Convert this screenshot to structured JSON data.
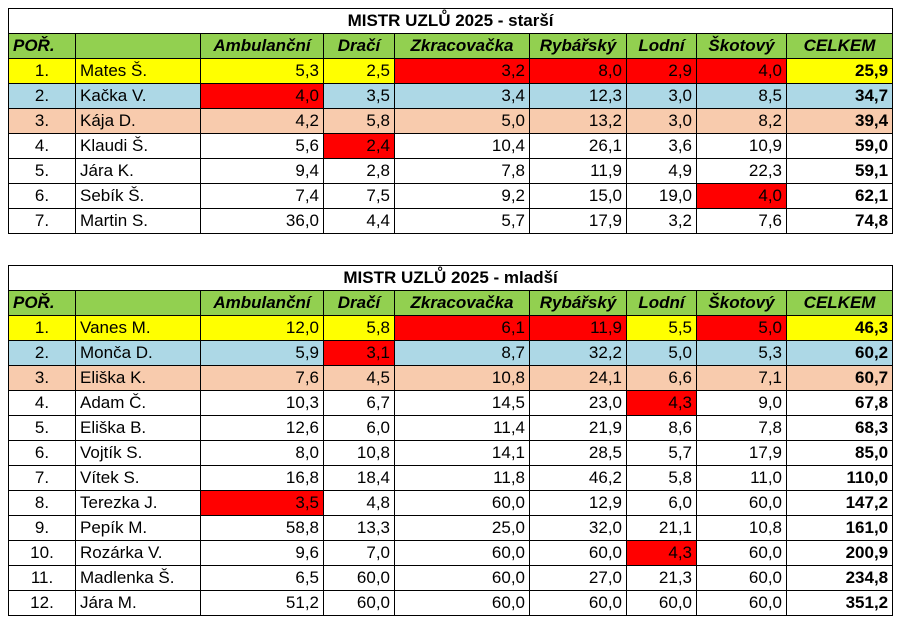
{
  "colors": {
    "header_green": "#92d050",
    "gold": "#ffff00",
    "silver": "#add8e6",
    "bronze": "#f8cbad",
    "best_red": "#ff0000"
  },
  "tables": [
    {
      "title": "MISTR UZLŮ 2025 - starší",
      "headers": [
        "POŘ.",
        "",
        "Ambulanční",
        "Dračí",
        "Zkracovačka",
        "Rybářský",
        "Lodní",
        "Škotový",
        "CELKEM"
      ],
      "rows": [
        {
          "rank": "1.",
          "name": "Mates Š.",
          "values": [
            "5,3",
            "2,5",
            "3,2",
            "8,0",
            "2,9",
            "4,0"
          ],
          "total": "25,9",
          "red": [
            2,
            3,
            4,
            5
          ]
        },
        {
          "rank": "2.",
          "name": "Kačka V.",
          "values": [
            "4,0",
            "3,5",
            "3,4",
            "12,3",
            "3,0",
            "8,5"
          ],
          "total": "34,7",
          "red": [
            0
          ]
        },
        {
          "rank": "3.",
          "name": "Kája D.",
          "values": [
            "4,2",
            "5,8",
            "5,0",
            "13,2",
            "3,0",
            "8,2"
          ],
          "total": "39,4",
          "red": []
        },
        {
          "rank": "4.",
          "name": "Klaudi Š.",
          "values": [
            "5,6",
            "2,4",
            "10,4",
            "26,1",
            "3,6",
            "10,9"
          ],
          "total": "59,0",
          "red": [
            1
          ]
        },
        {
          "rank": "5.",
          "name": "Jára K.",
          "values": [
            "9,4",
            "2,8",
            "7,8",
            "11,9",
            "4,9",
            "22,3"
          ],
          "total": "59,1",
          "red": []
        },
        {
          "rank": "6.",
          "name": "Sebík Š.",
          "values": [
            "7,4",
            "7,5",
            "9,2",
            "15,0",
            "19,0",
            "4,0"
          ],
          "total": "62,1",
          "red": [
            5
          ]
        },
        {
          "rank": "7.",
          "name": "Martin S.",
          "values": [
            "36,0",
            "4,4",
            "5,7",
            "17,9",
            "3,2",
            "7,6"
          ],
          "total": "74,8",
          "red": []
        }
      ]
    },
    {
      "title": "MISTR UZLŮ 2025 - mladší",
      "headers": [
        "POŘ.",
        "",
        "Ambulanční",
        "Dračí",
        "Zkracovačka",
        "Rybářský",
        "Lodní",
        "Škotový",
        "CELKEM"
      ],
      "rows": [
        {
          "rank": "1.",
          "name": "Vanes M.",
          "values": [
            "12,0",
            "5,8",
            "6,1",
            "11,9",
            "5,5",
            "5,0"
          ],
          "total": "46,3",
          "red": [
            2,
            3,
            5
          ]
        },
        {
          "rank": "2.",
          "name": "Monča D.",
          "values": [
            "5,9",
            "3,1",
            "8,7",
            "32,2",
            "5,0",
            "5,3"
          ],
          "total": "60,2",
          "red": [
            1
          ]
        },
        {
          "rank": "3.",
          "name": "Eliška K.",
          "values": [
            "7,6",
            "4,5",
            "10,8",
            "24,1",
            "6,6",
            "7,1"
          ],
          "total": "60,7",
          "red": []
        },
        {
          "rank": "4.",
          "name": "Adam Č.",
          "values": [
            "10,3",
            "6,7",
            "14,5",
            "23,0",
            "4,3",
            "9,0"
          ],
          "total": "67,8",
          "red": [
            4
          ]
        },
        {
          "rank": "5.",
          "name": "Eliška B.",
          "values": [
            "12,6",
            "6,0",
            "11,4",
            "21,9",
            "8,6",
            "7,8"
          ],
          "total": "68,3",
          "red": []
        },
        {
          "rank": "6.",
          "name": "Vojtík S.",
          "values": [
            "8,0",
            "10,8",
            "14,1",
            "28,5",
            "5,7",
            "17,9"
          ],
          "total": "85,0",
          "red": []
        },
        {
          "rank": "7.",
          "name": "Vítek S.",
          "values": [
            "16,8",
            "18,4",
            "11,8",
            "46,2",
            "5,8",
            "11,0"
          ],
          "total": "110,0",
          "red": []
        },
        {
          "rank": "8.",
          "name": "Terezka J.",
          "values": [
            "3,5",
            "4,8",
            "60,0",
            "12,9",
            "6,0",
            "60,0"
          ],
          "total": "147,2",
          "red": [
            0
          ]
        },
        {
          "rank": "9.",
          "name": "Pepík M.",
          "values": [
            "58,8",
            "13,3",
            "25,0",
            "32,0",
            "21,1",
            "10,8"
          ],
          "total": "161,0",
          "red": []
        },
        {
          "rank": "10.",
          "name": "Rozárka V.",
          "values": [
            "9,6",
            "7,0",
            "60,0",
            "60,0",
            "4,3",
            "60,0"
          ],
          "total": "200,9",
          "red": [
            4
          ]
        },
        {
          "rank": "11.",
          "name": "Madlenka Š.",
          "values": [
            "6,5",
            "60,0",
            "60,0",
            "27,0",
            "21,3",
            "60,0"
          ],
          "total": "234,8",
          "red": []
        },
        {
          "rank": "12.",
          "name": "Jára M.",
          "values": [
            "51,2",
            "60,0",
            "60,0",
            "60,0",
            "60,0",
            "60,0"
          ],
          "total": "351,2",
          "red": []
        }
      ]
    }
  ]
}
